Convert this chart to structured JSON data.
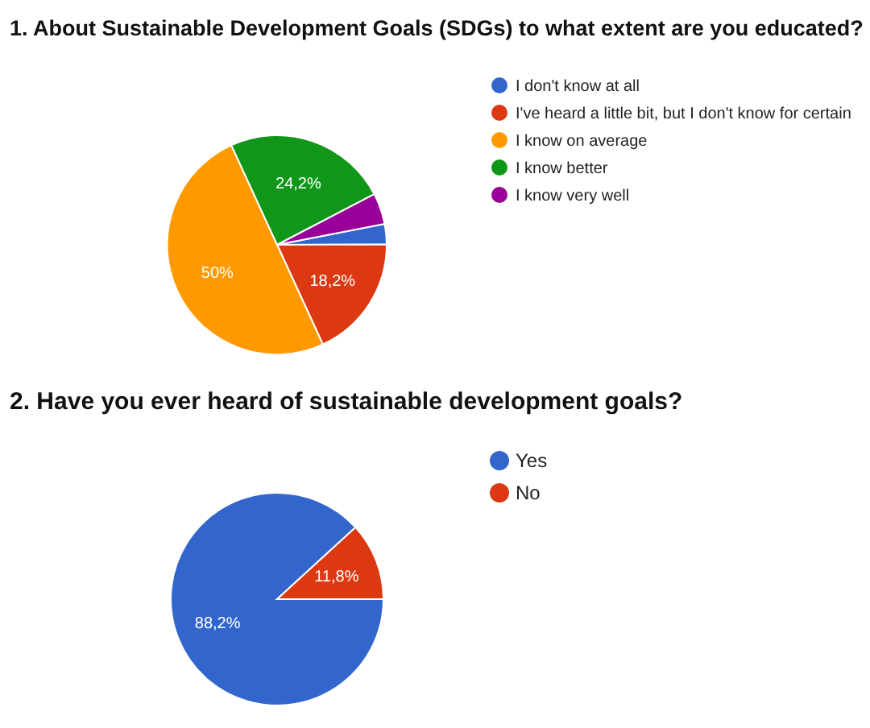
{
  "chart_data": [
    {
      "type": "pie",
      "title": "1. About Sustainable Development Goals (SDGs) to what extent are you educated?",
      "categories": [
        "I don't know at all",
        "I've heard a little bit, but I don't know for certain",
        "I know on average",
        "I know better",
        "I know very well"
      ],
      "values": [
        3.0,
        18.2,
        50,
        24.2,
        4.6
      ],
      "colors": [
        "#3366cc",
        "#dc3912",
        "#ff9900",
        "#109618",
        "#990099"
      ],
      "value_labels": [
        null,
        "18,2%",
        "50%",
        "24,2%",
        null
      ],
      "legend": "right"
    },
    {
      "type": "pie",
      "title": "2. Have you ever heard of sustainable development goals?",
      "categories": [
        "Yes",
        "No"
      ],
      "values": [
        88.2,
        11.8
      ],
      "colors": [
        "#3366cc",
        "#dc3912"
      ],
      "value_labels": [
        "88,2%",
        "11,8%"
      ],
      "legend": "right"
    }
  ]
}
